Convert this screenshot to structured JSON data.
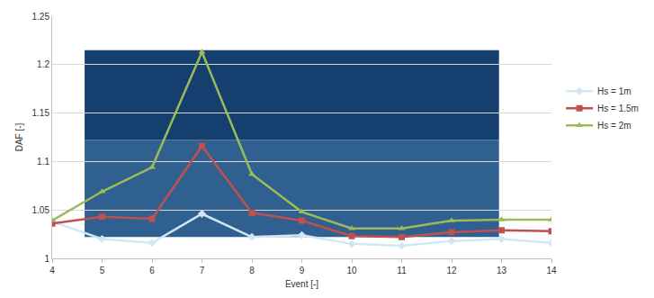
{
  "chart_data": {
    "type": "line",
    "x_label": "Event [-]",
    "y_label": "DAF [-]",
    "x": [
      4,
      5,
      6,
      7,
      8,
      9,
      10,
      11,
      12,
      13,
      14
    ],
    "series": [
      {
        "name": "Hs = 1m",
        "color": "#cfe8f2",
        "marker": "diamond",
        "values": [
          1.038,
          1.02,
          1.016,
          1.046,
          1.022,
          1.024,
          1.015,
          1.013,
          1.018,
          1.02,
          1.016
        ]
      },
      {
        "name": "Hs = 1.5m",
        "color": "#c0504d",
        "marker": "square",
        "values": [
          1.036,
          1.043,
          1.041,
          1.116,
          1.047,
          1.039,
          1.023,
          1.022,
          1.027,
          1.029,
          1.028
        ]
      },
      {
        "name": "Hs = 2m",
        "color": "#9bbb59",
        "marker": "triangle-up",
        "values": [
          1.039,
          1.069,
          1.094,
          1.213,
          1.087,
          1.048,
          1.031,
          1.031,
          1.039,
          1.04,
          1.04
        ]
      }
    ],
    "xlim": [
      4,
      14
    ],
    "xticks": [
      4,
      5,
      6,
      7,
      8,
      9,
      10,
      11,
      12,
      13,
      14
    ],
    "ylim": [
      1,
      1.25
    ],
    "yticks": [
      1,
      1.05,
      1.1,
      1.15,
      1.2,
      1.25
    ],
    "grid": true,
    "legend": "right"
  }
}
